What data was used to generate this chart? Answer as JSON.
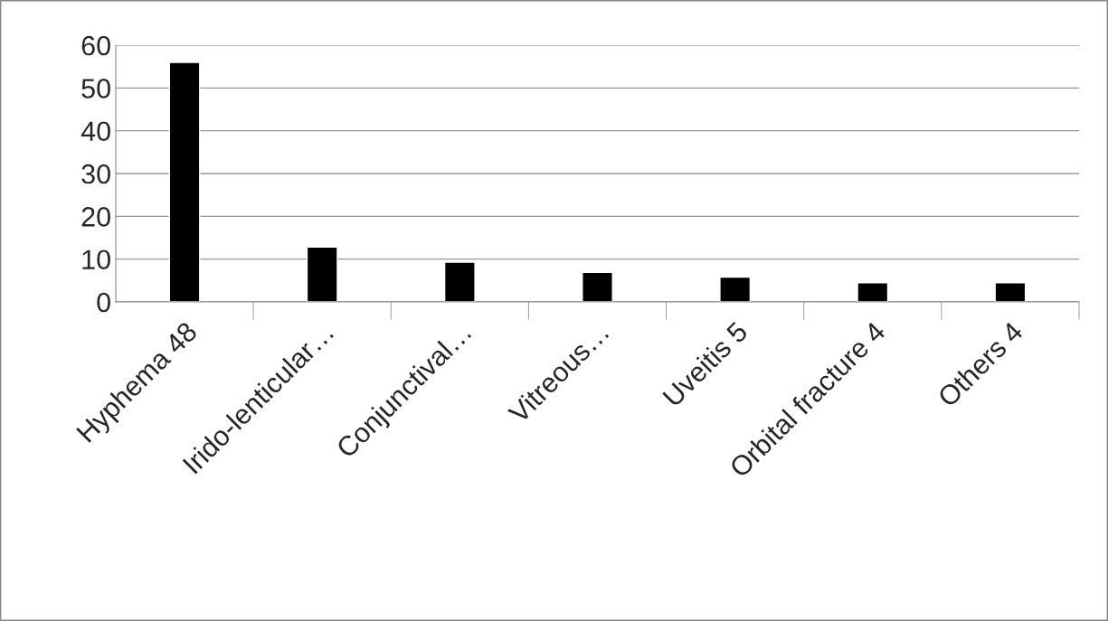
{
  "chart_data": {
    "type": "bar",
    "categories": [
      "Hyphema 48",
      "Irido-lenticular…",
      "Conjunctival…",
      "Vitreous…",
      "Uveitis 5",
      "Orbital fracture 4",
      "Others 4"
    ],
    "values": [
      56,
      12.8,
      9.3,
      6.9,
      5.8,
      4.5,
      4.5
    ],
    "color": "#000000",
    "ylim": [
      0,
      60
    ],
    "yticks": [
      0,
      10,
      20,
      30,
      40,
      50,
      60
    ],
    "grid": "y"
  }
}
